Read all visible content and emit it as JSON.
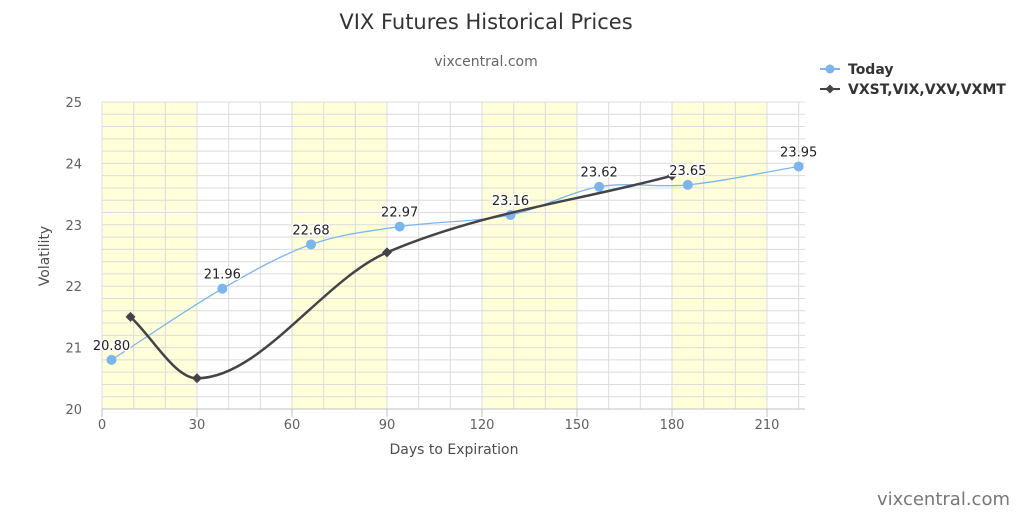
{
  "chart_data": {
    "type": "line",
    "title": "VIX Futures Historical Prices",
    "subtitle": "vixcentral.com",
    "xlabel": "Days to Expiration",
    "ylabel": "Volatility",
    "xlim": [
      0,
      222
    ],
    "ylim": [
      20,
      25
    ],
    "x_ticks": [
      0,
      30,
      60,
      90,
      120,
      150,
      180,
      210
    ],
    "y_ticks": [
      20,
      21,
      22,
      23,
      24,
      25
    ],
    "bands": [
      [
        0,
        30
      ],
      [
        60,
        90
      ],
      [
        120,
        150
      ],
      [
        180,
        210
      ]
    ],
    "band_color": "#ffffd9",
    "grid": true,
    "legend_position": "top-right",
    "series": [
      {
        "name": "Today",
        "color": "#7cb5ec",
        "marker": "circle",
        "labels": true,
        "points": [
          {
            "x": 3,
            "y": 20.8,
            "label": "20.80"
          },
          {
            "x": 38,
            "y": 21.96,
            "label": "21.96"
          },
          {
            "x": 66,
            "y": 22.68,
            "label": "22.68"
          },
          {
            "x": 94,
            "y": 22.97,
            "label": "22.97"
          },
          {
            "x": 129,
            "y": 23.16,
            "label": "23.16"
          },
          {
            "x": 157,
            "y": 23.62,
            "label": "23.62"
          },
          {
            "x": 185,
            "y": 23.65,
            "label": "23.65"
          },
          {
            "x": 220,
            "y": 23.95,
            "label": "23.95"
          }
        ]
      },
      {
        "name": "VXST,VIX,VXV,VXMT",
        "color": "#434348",
        "marker": "diamond",
        "labels": false,
        "points": [
          {
            "x": 9,
            "y": 21.5
          },
          {
            "x": 30,
            "y": 20.5
          },
          {
            "x": 90,
            "y": 22.55
          },
          {
            "x": 180,
            "y": 23.8
          }
        ]
      }
    ]
  },
  "credit": "vixcentral.com"
}
